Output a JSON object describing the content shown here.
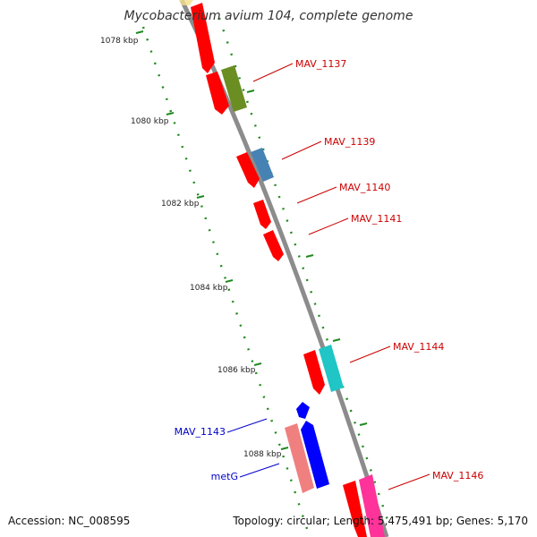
{
  "title": "Mycobacterium avium 104, complete genome",
  "accession": "Accession: NC_008595",
  "summary": "Topology: circular; Length: 5,475,491 bp; Genes: 5,170",
  "colors": {
    "backbone": "#8c8c8c",
    "tick": "#1f8a1f",
    "cds_red": "#ff0000",
    "label_red": "#cc0000",
    "label_blue": "#0000cc"
  },
  "kbp_labels": [
    "1078 kbp",
    "1080 kbp",
    "1082 kbp",
    "1084 kbp",
    "1086 kbp",
    "1088 kbp"
  ],
  "gene_labels": [
    {
      "text": "MAV_1137"
    },
    {
      "text": "MAV_1139"
    },
    {
      "text": "MAV_1140"
    },
    {
      "text": "MAV_1141"
    },
    {
      "text": "MAV_1144"
    },
    {
      "text": "MAV_1146"
    },
    {
      "text": "MAV_1143"
    },
    {
      "text": "metG"
    }
  ]
}
